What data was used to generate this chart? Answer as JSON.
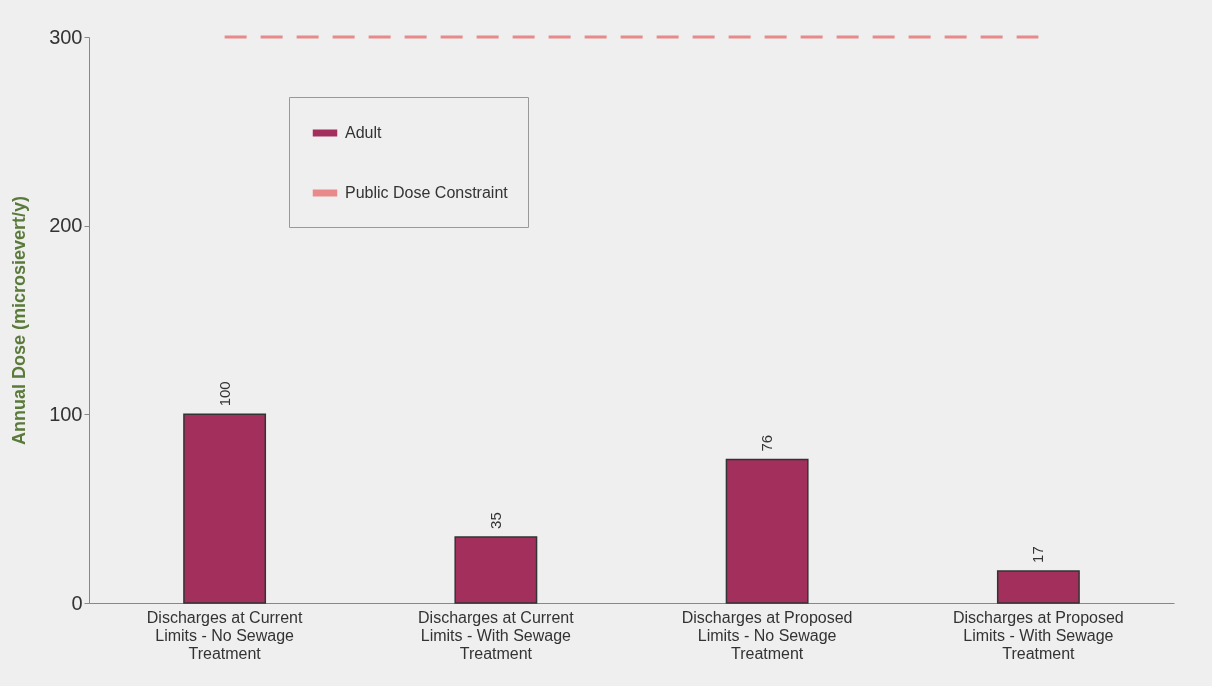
{
  "chart_data": {
    "type": "bar",
    "ylabel": "Annual Dose (microsievert/y)",
    "categories": [
      "Discharges at Current Limits - No Sewage Treatment",
      "Discharges at Current Limits - With Sewage Treatment",
      "Discharges at Proposed Limits - No Sewage Treatment",
      "Discharges at Proposed Limits - With Sewage Treatment"
    ],
    "series": [
      {
        "name": "Adult",
        "color": "#a3305c",
        "values": [
          100,
          35,
          76,
          17
        ]
      }
    ],
    "ref_lines": [
      {
        "axis": "y",
        "value": 300,
        "label": "Public Dose Constraint",
        "color": "#e88a8a",
        "line_style": "dashed"
      }
    ],
    "ylim": [
      0,
      300
    ],
    "yticks": [
      0,
      100,
      200,
      300
    ],
    "grid": false,
    "legend": "top left",
    "data_labels": true
  }
}
